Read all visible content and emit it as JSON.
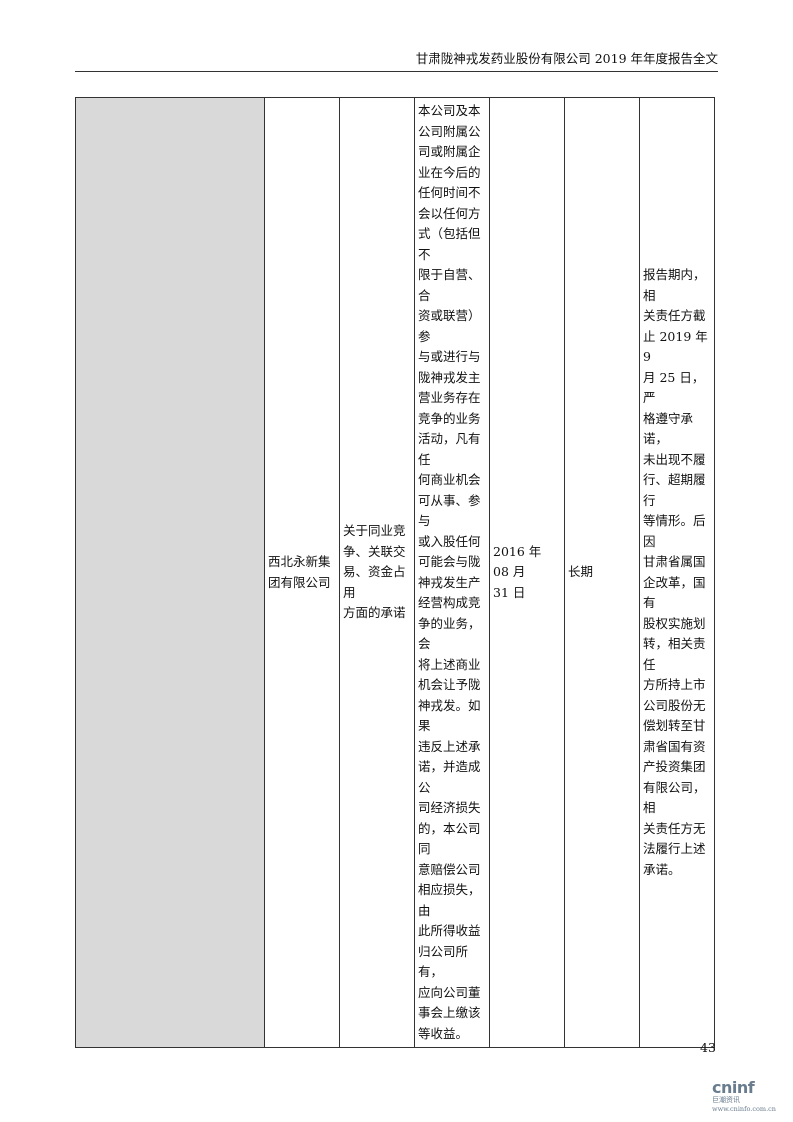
{
  "header": {
    "title": "甘肃陇神戎发药业股份有限公司 2019 年年度报告全文"
  },
  "table": {
    "row": {
      "col1": "",
      "party": "西北永新集\n团有限公司",
      "type": "关于同业竞\n争、关联交\n易、资金占用\n方面的承诺",
      "content": "本公司及本\n公司附属公\n司或附属企\n业在今后的\n任何时间不\n会以任何方\n式（包括但不\n限于自营、合\n资或联营）参\n与或进行与\n陇神戎发主\n营业务存在\n竞争的业务\n活动，凡有任\n何商业机会\n可从事、参与\n或入股任何\n可能会与陇\n神戎发生产\n经营构成竞\n争的业务，会\n将上述商业\n机会让予陇\n神戎发。如果\n违反上述承\n诺，并造成公\n司经济损失\n的，本公司同\n意赔偿公司\n相应损失，由\n此所得收益\n归公司所有，\n应向公司董\n事会上缴该\n等收益。",
      "date": "2016 年 08 月\n31 日",
      "term": "长期",
      "status": "报告期内，相\n关责任方截\n止 2019 年 9\n月 25 日，严\n格遵守承诺，\n未出现不履\n行、超期履行\n等情形。后因\n甘肃省属国\n企改革，国有\n股权实施划\n转，相关责任\n方所持上市\n公司股份无\n偿划转至甘\n肃省国有资\n产投资集团\n有限公司，相\n关责任方无\n法履行上述\n承诺。"
    }
  },
  "footer": {
    "page_number": "43"
  },
  "logo": {
    "name": "cninf",
    "sub": "巨潮资讯",
    "url": "www.cninfo.com.cn"
  }
}
